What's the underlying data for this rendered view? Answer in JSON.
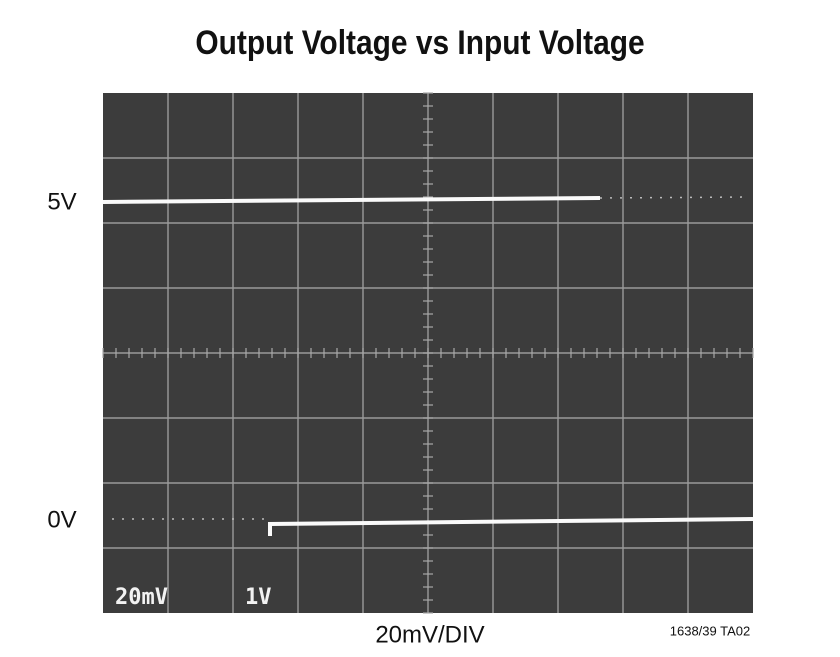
{
  "title": "Output Voltage vs Input Voltage",
  "y_labels": [
    "5V",
    "0V"
  ],
  "x_label": "20mV/DIV",
  "figure_id": "1638/39 TA02",
  "screen_labels": [
    "20mV",
    "1V"
  ]
}
